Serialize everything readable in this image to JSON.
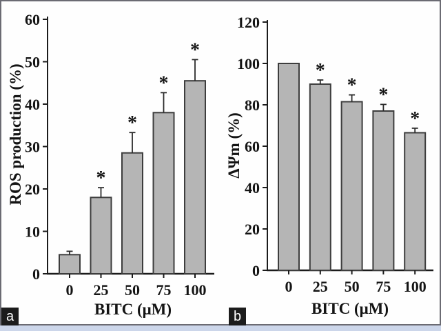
{
  "figure": {
    "panels": [
      {
        "label": "a"
      },
      {
        "label": "b"
      }
    ]
  },
  "annotations": {
    "significance_marker": "*"
  },
  "colors": {
    "bar_fill": "#b5b5b5",
    "bar_border": "#3d3d3d",
    "axis": "#1b1b1b",
    "error_bar": "#2a2a2a",
    "text": "#141414",
    "panel_label_bg": "#1c1c1c",
    "panel_label_text": "#ffffff",
    "frame_border": "#6b6b73",
    "bottom_strip": "#ccd6ea",
    "background": "#fefefe"
  },
  "chart_data": [
    {
      "type": "bar",
      "panel": "a",
      "title": "",
      "xlabel": "BITC (μM)",
      "ylabel": "ROS production (%)",
      "categories": [
        "0",
        "25",
        "50",
        "75",
        "100"
      ],
      "values": [
        4.5,
        18,
        28.5,
        38,
        45.5
      ],
      "errors": [
        0.8,
        2.3,
        4.8,
        4.7,
        5.0
      ],
      "significance": [
        false,
        true,
        true,
        true,
        true
      ],
      "ylim": [
        0,
        60
      ],
      "yticks": [
        0,
        10,
        20,
        30,
        40,
        50,
        60
      ],
      "grid": false,
      "legend": "none"
    },
    {
      "type": "bar",
      "panel": "b",
      "title": "",
      "xlabel": "BITC (μM)",
      "ylabel": "ΔΨm (%)",
      "categories": [
        "0",
        "25",
        "50",
        "75",
        "100"
      ],
      "values": [
        100,
        90,
        81.5,
        77,
        66.5
      ],
      "errors": [
        0,
        2,
        3.3,
        3.2,
        2.2
      ],
      "significance": [
        false,
        true,
        true,
        true,
        true
      ],
      "ylim": [
        0,
        120
      ],
      "yticks": [
        0,
        20,
        40,
        60,
        80,
        100,
        120
      ],
      "grid": false,
      "legend": "none"
    }
  ]
}
